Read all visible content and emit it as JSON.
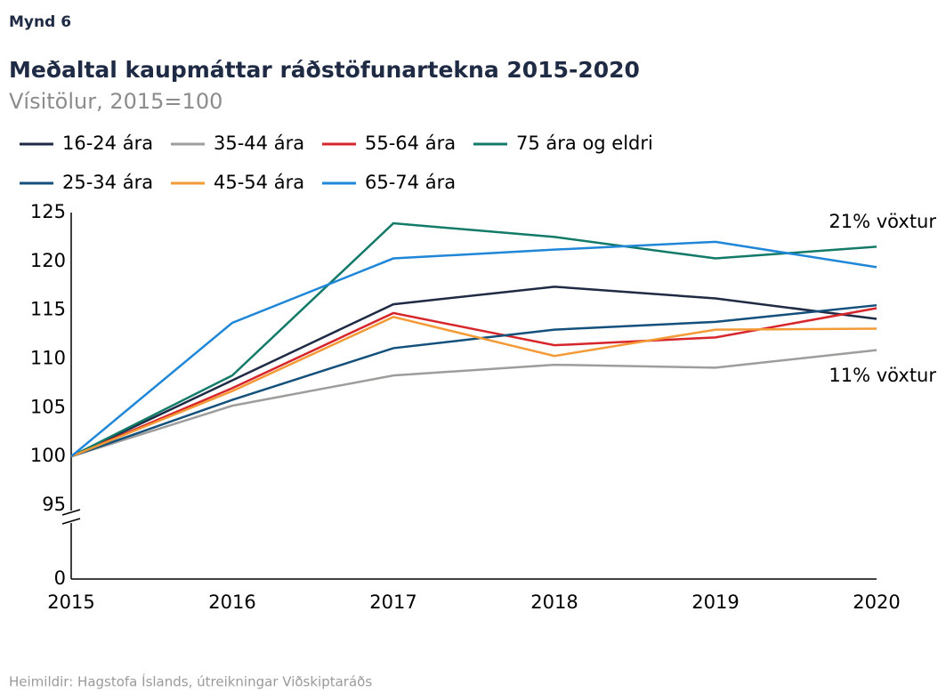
{
  "chart_data": {
    "type": "line",
    "figure_label": "Mynd 6",
    "title": "Meðaltal kaupmáttar ráðstöfunartekna 2015-2020",
    "subtitle": "Vísitölur, 2015=100",
    "source": "Heimildir: Hagstofa Íslands, útreikningar Viðskiptaráðs",
    "x": [
      2015,
      2016,
      2017,
      2018,
      2019,
      2020
    ],
    "xlim": [
      2015,
      2020
    ],
    "xticks": [
      2015,
      2016,
      2017,
      2018,
      2019,
      2020
    ],
    "ylim": [
      0,
      125
    ],
    "axis_break": [
      0,
      95
    ],
    "yticks": [
      0,
      95,
      100,
      105,
      110,
      115,
      120,
      125
    ],
    "series": [
      {
        "name": "16-24 ára",
        "color": "#1f2a44",
        "values": [
          100,
          107.8,
          115.6,
          117.4,
          116.2,
          114.1
        ]
      },
      {
        "name": "35-44 ára",
        "color": "#9d9d9b",
        "values": [
          100,
          105.2,
          108.3,
          109.4,
          109.1,
          110.9
        ]
      },
      {
        "name": "55-64 ára",
        "color": "#d7262b",
        "values": [
          100,
          107.0,
          114.7,
          111.4,
          112.2,
          115.2
        ]
      },
      {
        "name": "75 ára og eldri",
        "color": "#127a68",
        "values": [
          100,
          108.3,
          123.9,
          122.5,
          120.3,
          121.5
        ]
      },
      {
        "name": "25-34 ára",
        "color": "#13507b",
        "values": [
          100,
          105.8,
          111.1,
          113.0,
          113.8,
          115.5
        ]
      },
      {
        "name": "45-54 ára",
        "color": "#f39a36",
        "values": [
          100,
          106.7,
          114.3,
          110.3,
          113.0,
          113.1
        ]
      },
      {
        "name": "65-74 ára",
        "color": "#1f86d8",
        "values": [
          100,
          113.7,
          120.3,
          121.2,
          122.0,
          119.4
        ]
      }
    ],
    "annotations": [
      "21% vöxtur",
      "11% vöxtur"
    ]
  }
}
